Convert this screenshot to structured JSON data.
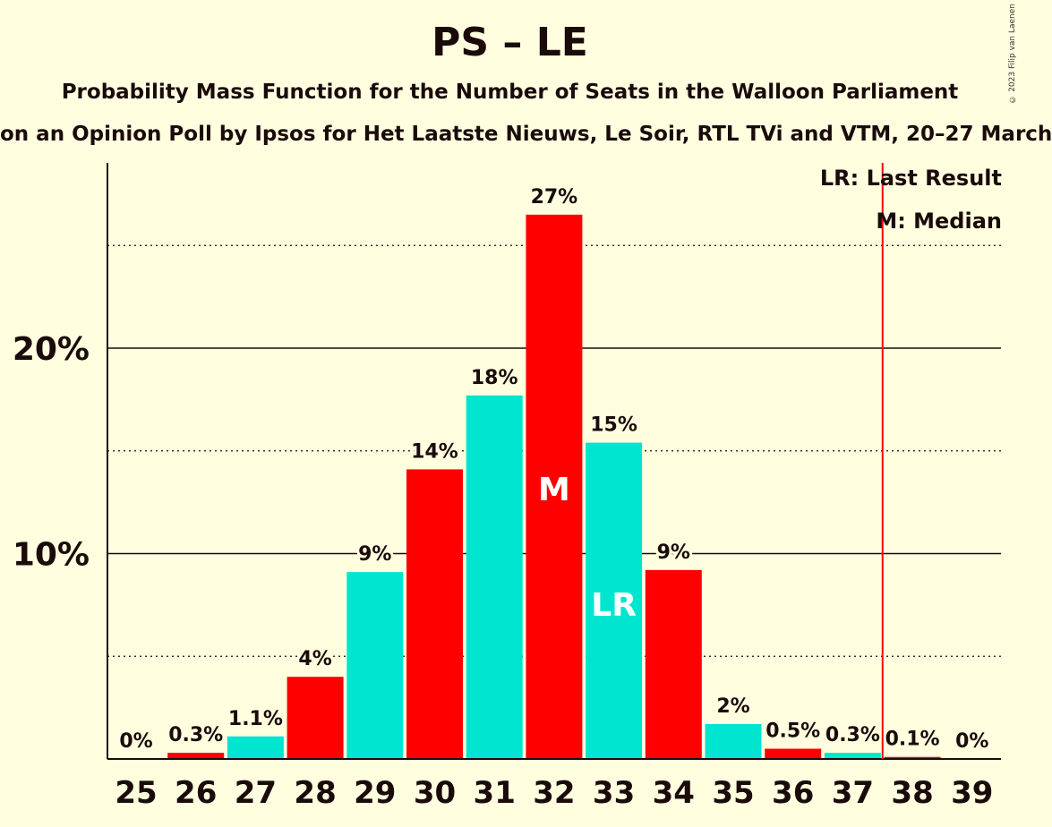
{
  "title": "PS – LE",
  "subtitle": "Probability Mass Function for the Number of Seats in the Walloon Parliament",
  "subtitle2": "on an Opinion Poll by Ipsos for Het Laatste Nieuws, Le Soir, RTL TVi and VTM, 20–27 March",
  "copyright": "© 2023 Filip van Laenen",
  "legend": {
    "last_result": "LR: Last Result",
    "median": "M: Median"
  },
  "colors": {
    "red": "#ff0000",
    "cyan": "#00e5d0",
    "background": "#ffffe0",
    "line": "#ff0000"
  },
  "chart_data": {
    "type": "bar",
    "categories": [
      "25",
      "26",
      "27",
      "28",
      "29",
      "30",
      "31",
      "32",
      "33",
      "34",
      "35",
      "36",
      "37",
      "38",
      "39"
    ],
    "values": [
      0,
      0.3,
      1.1,
      4,
      9.1,
      14.1,
      17.7,
      26.5,
      15.4,
      9.2,
      1.7,
      0.5,
      0.3,
      0.1,
      0
    ],
    "labels": [
      "0%",
      "0.3%",
      "1.1%",
      "4%",
      "9%",
      "14%",
      "18%",
      "27%",
      "15%",
      "9%",
      "2%",
      "0.5%",
      "0.3%",
      "0.1%",
      "0%"
    ],
    "bar_colors": [
      "red",
      "red",
      "cyan",
      "red",
      "cyan",
      "red",
      "cyan",
      "red",
      "cyan",
      "red",
      "cyan",
      "red",
      "cyan",
      "red",
      "cyan"
    ],
    "ylim": [
      0,
      29
    ],
    "yticks": [
      {
        "value": 10,
        "label": "10%"
      },
      {
        "value": 20,
        "label": "20%"
      }
    ],
    "dotted_lines": [
      5,
      15,
      25
    ],
    "median": {
      "category": "32",
      "label": "M"
    },
    "last_result": {
      "category": "33",
      "label": "LR"
    },
    "threshold_line_after": "37"
  }
}
